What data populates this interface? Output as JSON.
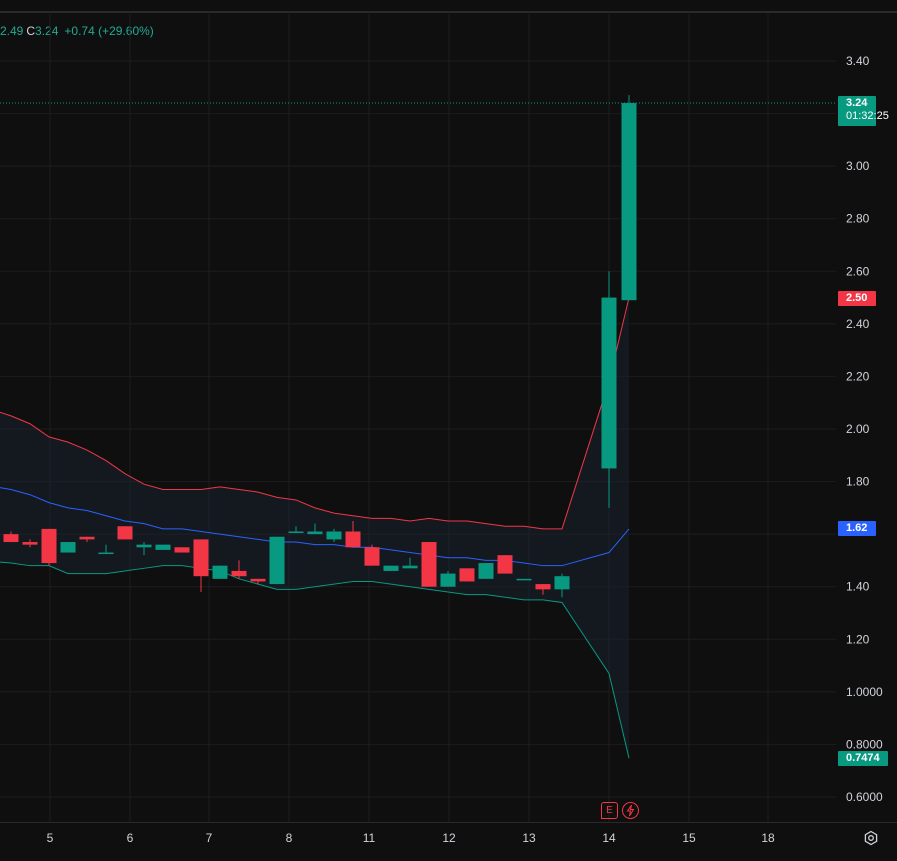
{
  "legend": {
    "open_value": "2.49",
    "close_key": "C",
    "close_value": "3.24",
    "change": "+0.74 (+29.60%)"
  },
  "tags": {
    "last_price": "3.24",
    "countdown": "01:32:25",
    "bb_upper": "2.50",
    "bb_basis": "1.62",
    "bb_lower": "0.7474"
  },
  "events": {
    "earnings_label": "E",
    "earnings_icon": "earnings-flag-icon",
    "dividend_icon": "lightning-icon"
  },
  "colors": {
    "up": "#089981",
    "down": "#f23645",
    "basis": "#2962ff",
    "band_fill": "#1a2230",
    "background": "#0f0f0f"
  },
  "chart_data": {
    "type": "candlestick",
    "y_ticks": [
      "3.40",
      "3.00",
      "2.80",
      "2.60",
      "2.40",
      "2.20",
      "2.00",
      "1.80",
      "1.40",
      "1.20",
      "1.0000",
      "0.8000",
      "0.6000"
    ],
    "y_range": [
      0.5,
      3.53
    ],
    "x_ticks": [
      "5",
      "6",
      "7",
      "8",
      "11",
      "12",
      "13",
      "14",
      "15",
      "18"
    ],
    "last_price": 3.24,
    "candles": [
      {
        "o": 1.6,
        "h": 1.61,
        "l": 1.57,
        "c": 1.57
      },
      {
        "o": 1.57,
        "h": 1.58,
        "l": 1.55,
        "c": 1.56
      },
      {
        "o": 1.62,
        "h": 1.62,
        "l": 1.48,
        "c": 1.49
      },
      {
        "o": 1.53,
        "h": 1.57,
        "l": 1.53,
        "c": 1.57
      },
      {
        "o": 1.59,
        "h": 1.59,
        "l": 1.57,
        "c": 1.58
      },
      {
        "o": 1.53,
        "h": 1.56,
        "l": 1.53,
        "c": 1.53
      },
      {
        "o": 1.63,
        "h": 1.63,
        "l": 1.58,
        "c": 1.58
      },
      {
        "o": 1.55,
        "h": 1.57,
        "l": 1.52,
        "c": 1.56
      },
      {
        "o": 1.54,
        "h": 1.56,
        "l": 1.54,
        "c": 1.56
      },
      {
        "o": 1.55,
        "h": 1.55,
        "l": 1.53,
        "c": 1.53
      },
      {
        "o": 1.58,
        "h": 1.58,
        "l": 1.38,
        "c": 1.44
      },
      {
        "o": 1.43,
        "h": 1.48,
        "l": 1.43,
        "c": 1.48
      },
      {
        "o": 1.46,
        "h": 1.5,
        "l": 1.43,
        "c": 1.44
      },
      {
        "o": 1.43,
        "h": 1.43,
        "l": 1.41,
        "c": 1.42
      },
      {
        "o": 1.41,
        "h": 1.59,
        "l": 1.41,
        "c": 1.59
      },
      {
        "o": 1.61,
        "h": 1.63,
        "l": 1.61,
        "c": 1.61
      },
      {
        "o": 1.6,
        "h": 1.64,
        "l": 1.6,
        "c": 1.61
      },
      {
        "o": 1.58,
        "h": 1.62,
        "l": 1.57,
        "c": 1.61
      },
      {
        "o": 1.61,
        "h": 1.65,
        "l": 1.55,
        "c": 1.55
      },
      {
        "o": 1.55,
        "h": 1.56,
        "l": 1.48,
        "c": 1.48
      },
      {
        "o": 1.46,
        "h": 1.48,
        "l": 1.46,
        "c": 1.48
      },
      {
        "o": 1.47,
        "h": 1.51,
        "l": 1.47,
        "c": 1.48
      },
      {
        "o": 1.57,
        "h": 1.57,
        "l": 1.4,
        "c": 1.4
      },
      {
        "o": 1.4,
        "h": 1.46,
        "l": 1.4,
        "c": 1.45
      },
      {
        "o": 1.47,
        "h": 1.47,
        "l": 1.42,
        "c": 1.42
      },
      {
        "o": 1.43,
        "h": 1.49,
        "l": 1.43,
        "c": 1.49
      },
      {
        "o": 1.52,
        "h": 1.52,
        "l": 1.45,
        "c": 1.45
      },
      {
        "o": 1.43,
        "h": 1.43,
        "l": 1.43,
        "c": 1.43
      },
      {
        "o": 1.41,
        "h": 1.41,
        "l": 1.37,
        "c": 1.39
      },
      {
        "o": 1.39,
        "h": 1.45,
        "l": 1.36,
        "c": 1.44
      },
      {
        "o": 1.85,
        "h": 2.6,
        "l": 1.7,
        "c": 2.5
      },
      {
        "o": 2.49,
        "h": 3.27,
        "l": 2.49,
        "c": 3.24
      }
    ],
    "bollinger": {
      "upper": [
        2.05,
        2.02,
        1.97,
        1.95,
        1.92,
        1.88,
        1.83,
        1.79,
        1.77,
        1.77,
        1.77,
        1.78,
        1.77,
        1.76,
        1.74,
        1.73,
        1.7,
        1.68,
        1.67,
        1.66,
        1.66,
        1.65,
        1.66,
        1.65,
        1.65,
        1.64,
        1.63,
        1.63,
        1.62,
        1.62,
        2.18,
        2.5
      ],
      "basis": [
        1.77,
        1.75,
        1.72,
        1.7,
        1.69,
        1.67,
        1.65,
        1.64,
        1.62,
        1.62,
        1.61,
        1.6,
        1.59,
        1.58,
        1.57,
        1.57,
        1.56,
        1.56,
        1.55,
        1.55,
        1.54,
        1.53,
        1.52,
        1.51,
        1.51,
        1.5,
        1.5,
        1.49,
        1.48,
        1.48,
        1.53,
        1.62
      ],
      "lower": [
        1.49,
        1.48,
        1.48,
        1.45,
        1.45,
        1.45,
        1.46,
        1.47,
        1.48,
        1.48,
        1.47,
        1.46,
        1.43,
        1.41,
        1.39,
        1.39,
        1.4,
        1.41,
        1.42,
        1.42,
        1.41,
        1.4,
        1.39,
        1.38,
        1.37,
        1.37,
        1.36,
        1.35,
        1.35,
        1.34,
        1.07,
        0.7474
      ]
    }
  }
}
